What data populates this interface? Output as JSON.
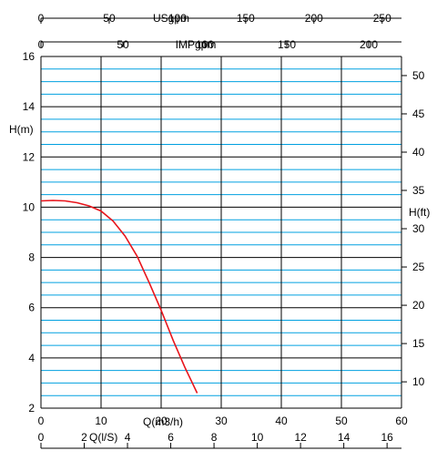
{
  "chart_data": {
    "type": "line",
    "title": "",
    "x_primary": {
      "label": "Q(m3/h)",
      "range": [
        0,
        60
      ],
      "ticks": [
        "0",
        "10",
        "20",
        "30",
        "40",
        "50",
        "60"
      ]
    },
    "x_ls": {
      "label": "Q(l/S)",
      "ticks": [
        "0",
        "2",
        "4",
        "6",
        "8",
        "10",
        "12",
        "14",
        "16"
      ]
    },
    "x_usgpm": {
      "label": "USgpm",
      "ticks": [
        "0",
        "50",
        "100",
        "150",
        "200",
        "250"
      ]
    },
    "x_impgpm": {
      "label": "IMPgpm",
      "ticks": [
        "0",
        "50",
        "100",
        "150",
        "200"
      ]
    },
    "y_left": {
      "label": "H(m)",
      "range": [
        2,
        16
      ],
      "ticks": [
        "2",
        "4",
        "6",
        "8",
        "10",
        "12",
        "14",
        "16"
      ]
    },
    "y_right": {
      "label": "H(ft)",
      "ticks": [
        "10",
        "15",
        "20",
        "25",
        "30",
        "35",
        "40",
        "45",
        "50"
      ]
    },
    "grid": true,
    "series": [
      {
        "color": "#e8141b",
        "points": [
          [
            0,
            10.25
          ],
          [
            2,
            10.27
          ],
          [
            4,
            10.25
          ],
          [
            6,
            10.18
          ],
          [
            8,
            10.05
          ],
          [
            10,
            9.85
          ],
          [
            12,
            9.45
          ],
          [
            14,
            8.85
          ],
          [
            16,
            8.05
          ],
          [
            18,
            7.0
          ],
          [
            20,
            5.9
          ],
          [
            22,
            4.7
          ],
          [
            24,
            3.6
          ],
          [
            25,
            3.1
          ],
          [
            26,
            2.6
          ]
        ]
      }
    ],
    "colors": {
      "major_grid": "#000000",
      "minor_grid": "#00a0e0",
      "curve": "#e8141b"
    }
  }
}
